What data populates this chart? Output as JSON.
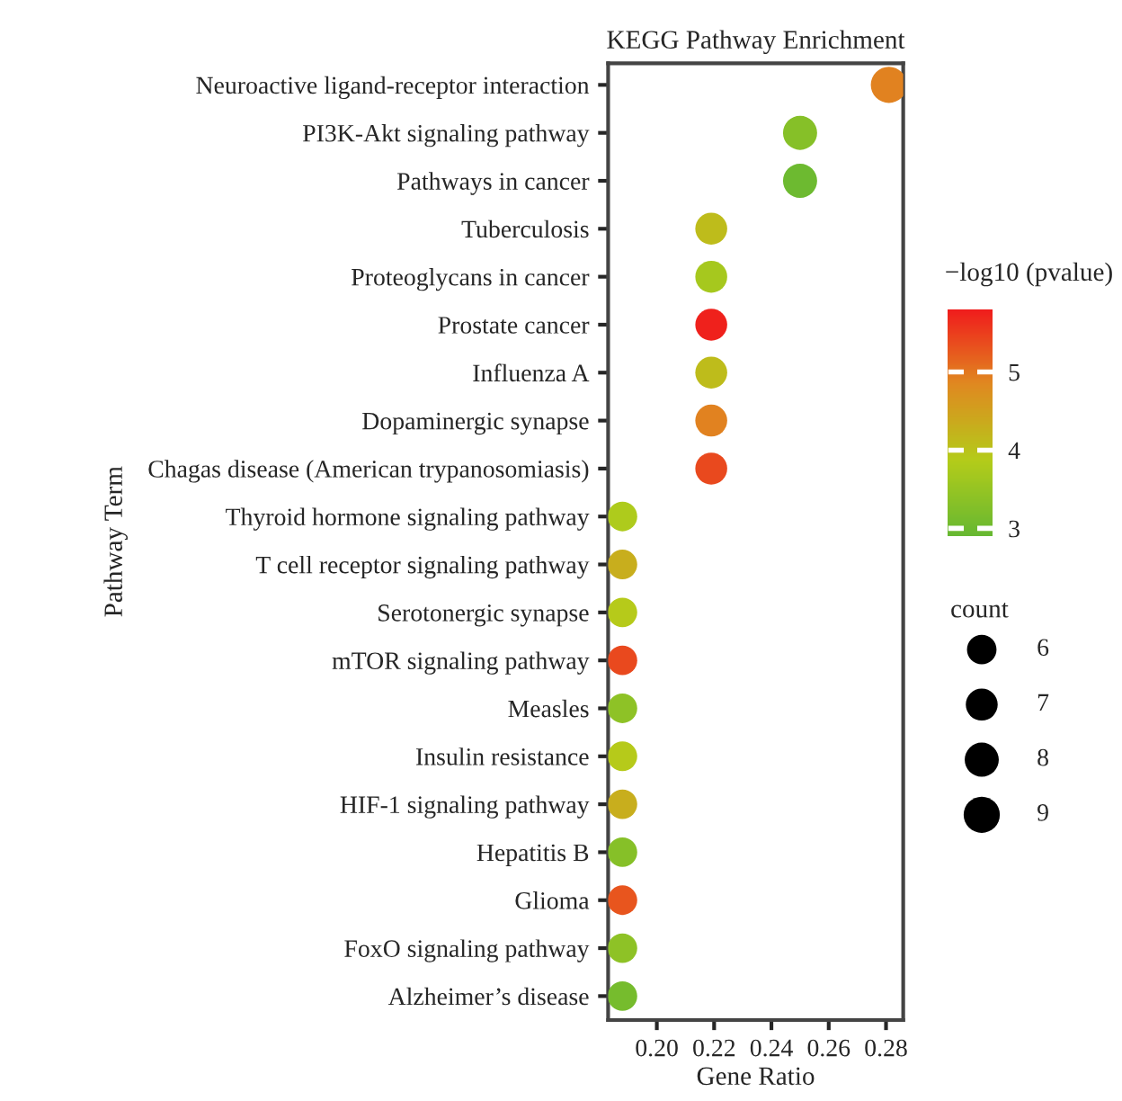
{
  "chart_data": {
    "type": "bubble",
    "title": "KEGG Pathway Enrichment",
    "xlabel": "Gene Ratio",
    "ylabel": "Pathway Term",
    "clabel": "−log10 (pvalue)",
    "legend_title": "count",
    "categories": [
      "Neuroactive ligand-receptor interaction",
      "PI3K-Akt signaling pathway",
      "Pathways in cancer",
      "Tuberculosis",
      "Proteoglycans in cancer",
      "Prostate cancer",
      "Influenza A",
      "Dopaminergic synapse",
      "Chagas disease (American trypanosomiasis)",
      "Thyroid hormone signaling pathway",
      "T cell receptor signaling pathway",
      "Serotonergic synapse",
      "mTOR signaling pathway",
      "Measles",
      "Insulin resistance",
      "HIF-1 signaling pathway",
      "Hepatitis B",
      "Glioma",
      "FoxO signaling pathway",
      "Alzheimer’s disease"
    ],
    "orientation": "horizontal",
    "values": [
      0.281,
      0.25,
      0.25,
      0.219,
      0.219,
      0.219,
      0.219,
      0.219,
      0.219,
      0.188,
      0.188,
      0.188,
      0.188,
      0.188,
      0.188,
      0.188,
      0.188,
      0.188,
      0.188,
      0.188
    ],
    "sizes": [
      9,
      8,
      8,
      7,
      7,
      7,
      7,
      7,
      7,
      6,
      6,
      6,
      6,
      6,
      6,
      6,
      6,
      6,
      6,
      6
    ],
    "size_legend": [
      6,
      7,
      8,
      9
    ],
    "cvalues": [
      4.9,
      3.3,
      3.0,
      4.1,
      3.7,
      5.75,
      4.1,
      4.9,
      5.4,
      3.8,
      4.3,
      3.9,
      5.4,
      3.4,
      3.9,
      4.3,
      3.3,
      5.3,
      3.4,
      3.1
    ],
    "clim": [
      2.9,
      5.8
    ],
    "cticks": [
      3,
      4,
      5
    ],
    "xlim": [
      0.183,
      0.286
    ],
    "xticks": [
      {
        "value": 0.2,
        "label": "0.20"
      },
      {
        "value": 0.22,
        "label": "0.22"
      },
      {
        "value": 0.24,
        "label": "0.24"
      },
      {
        "value": 0.26,
        "label": "0.26"
      },
      {
        "value": 0.28,
        "label": "0.28"
      }
    ],
    "grid": false
  }
}
